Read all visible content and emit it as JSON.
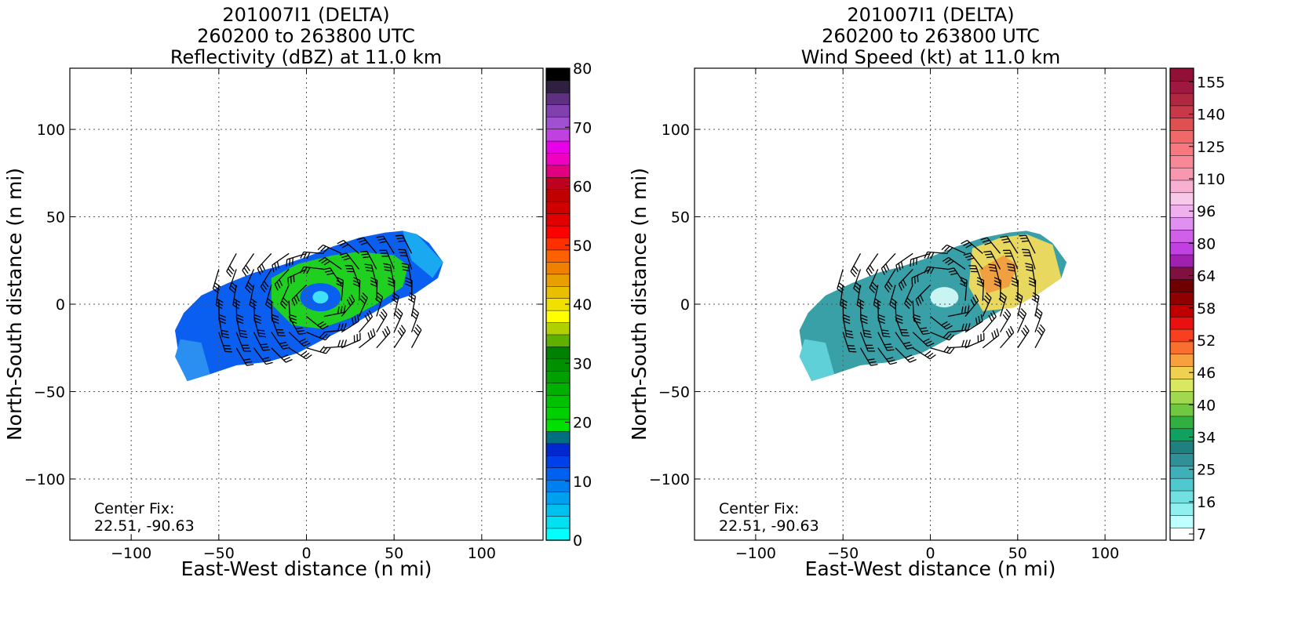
{
  "chart_data": [
    {
      "type": "heatmap",
      "title_lines": [
        "201007I1 (DELTA)",
        "260200 to 263800 UTC",
        "Reflectivity (dBZ) at 11.0 km"
      ],
      "xlabel": "East-West distance (n mi)",
      "ylabel": "North-South distance (n mi)",
      "xlim": [
        -135,
        135
      ],
      "ylim": [
        -135,
        135
      ],
      "xticks": [
        -100,
        -50,
        0,
        50,
        100
      ],
      "yticks": [
        -100,
        -50,
        0,
        50,
        100
      ],
      "grid": true,
      "annotation_lines": [
        "Center Fix:",
        "22.51, -90.63"
      ],
      "colorbar": {
        "range": [
          0,
          80
        ],
        "ticks": [
          "0",
          "10",
          "20",
          "30",
          "40",
          "50",
          "60",
          "70",
          "80"
        ],
        "colors": [
          "#00ffff",
          "#00e0f0",
          "#00c0f0",
          "#00a0f0",
          "#0080f0",
          "#0060f0",
          "#0040e8",
          "#0028d0",
          "#007080",
          "#00e000",
          "#00d000",
          "#00c000",
          "#00b000",
          "#00a000",
          "#009000",
          "#008000",
          "#60b000",
          "#b0d000",
          "#ffff00",
          "#f0e000",
          "#e8c000",
          "#e8a000",
          "#f08000",
          "#ff6000",
          "#ff3000",
          "#ff0000",
          "#e00000",
          "#d00000",
          "#c00000",
          "#c00020",
          "#e00080",
          "#f000c0",
          "#e800e8",
          "#c040e0",
          "#a050d0",
          "#8040b0",
          "#603080",
          "#302040",
          "#000000"
        ]
      },
      "wind_barbs": true
    },
    {
      "type": "heatmap",
      "title_lines": [
        "201007I1 (DELTA)",
        "260200 to 263800 UTC",
        "Wind Speed (kt) at 11.0 km"
      ],
      "xlabel": "East-West distance (n mi)",
      "ylabel": "North-South distance (n mi)",
      "xlim": [
        -135,
        135
      ],
      "ylim": [
        -135,
        135
      ],
      "xticks": [
        -100,
        -50,
        0,
        50,
        100
      ],
      "yticks": [
        -100,
        -50,
        0,
        50,
        100
      ],
      "grid": true,
      "annotation_lines": [
        "Center Fix:",
        "22.51, -90.63"
      ],
      "colorbar": {
        "ticks": [
          "7",
          "16",
          "25",
          "34",
          "40",
          "46",
          "52",
          "58",
          "64",
          "80",
          "96",
          "110",
          "125",
          "140",
          "155"
        ],
        "colors": [
          "#ffffff",
          "#c0ffff",
          "#90f0f0",
          "#70e0e0",
          "#50c8d0",
          "#40b0b8",
          "#309098",
          "#208080",
          "#10a060",
          "#30b040",
          "#70c840",
          "#a0d850",
          "#d8e860",
          "#f0d050",
          "#f8a040",
          "#f87030",
          "#f84020",
          "#e81010",
          "#c00000",
          "#900000",
          "#700000",
          "#801040",
          "#a020b0",
          "#c040e0",
          "#d060e8",
          "#e090f0",
          "#f0b0f0",
          "#f8c8e8",
          "#f8b0d0",
          "#f898b0",
          "#f88898",
          "#f87880",
          "#f06868",
          "#e05050",
          "#c83848",
          "#b02840",
          "#a01840",
          "#901038"
        ]
      },
      "wind_barbs": true
    }
  ]
}
